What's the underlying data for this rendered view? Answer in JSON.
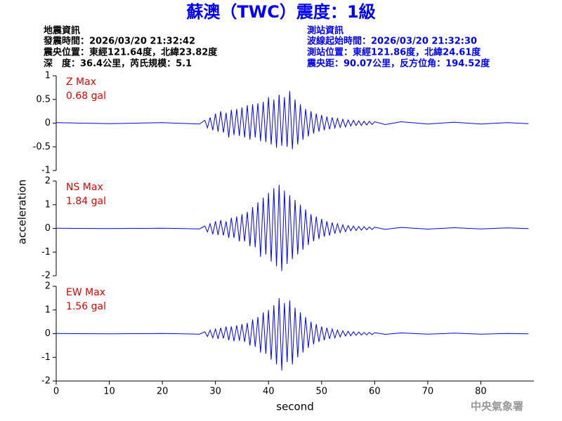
{
  "header": {
    "title": "蘇澳（TWC）震度：1級",
    "quake": [
      "地震資訊",
      "發震時間：2026/03/20 21:32:42",
      "震央位置：東經121.64度，北緯23.82度",
      "深　度：36.4公里，芮氏規模：5.1"
    ],
    "station": [
      "測站資訊",
      "波線起始時間：2026/03/20 21:32:30",
      "測站位置：東經121.86度，北緯24.61度",
      "震央距：90.07公里，反方位角：194.52度"
    ],
    "footer": "中央氣象署"
  },
  "chart_data": {
    "type": "line",
    "color": "#0000ff",
    "xlabel": "second",
    "ylabel": "acceleration",
    "xlim": [
      0,
      90
    ],
    "xticks": [
      0,
      10,
      20,
      30,
      40,
      50,
      60,
      70,
      80
    ],
    "x": [
      0,
      10,
      20,
      27,
      28,
      28.5,
      29,
      29.5,
      30,
      30.5,
      31,
      31.5,
      32,
      32.5,
      33,
      33.5,
      34,
      34.5,
      35,
      35.5,
      36,
      36.5,
      37,
      37.5,
      38,
      38.5,
      39,
      39.5,
      40,
      40.5,
      41,
      41.5,
      42,
      42.5,
      43,
      43.5,
      44,
      44.5,
      45,
      45.5,
      46,
      46.5,
      47,
      47.5,
      48,
      48.5,
      49,
      49.5,
      50,
      50.5,
      51,
      51.5,
      52,
      52.5,
      53,
      53.5,
      54,
      54.5,
      55,
      55.5,
      56,
      56.5,
      57,
      57.5,
      58,
      58.5,
      59,
      59.5,
      60,
      62,
      65,
      70,
      75,
      80,
      85,
      89
    ],
    "panels": [
      {
        "name": "Z Max",
        "max_label": "0.68 gal",
        "ylim": [
          -1,
          1
        ],
        "yticks": [
          -1,
          -0.5,
          0,
          0.5,
          1
        ],
        "values": [
          0.01,
          -0.01,
          0.01,
          -0.02,
          0.06,
          -0.1,
          0.12,
          -0.15,
          0.2,
          -0.18,
          0.25,
          -0.2,
          0.22,
          -0.3,
          0.28,
          -0.25,
          0.3,
          -0.27,
          0.33,
          -0.3,
          0.38,
          -0.35,
          0.4,
          -0.3,
          0.42,
          -0.38,
          0.45,
          -0.4,
          0.55,
          -0.45,
          0.5,
          -0.52,
          0.6,
          -0.48,
          0.55,
          -0.5,
          0.68,
          -0.55,
          0.5,
          -0.45,
          0.4,
          -0.35,
          0.3,
          -0.28,
          0.25,
          -0.22,
          0.2,
          -0.18,
          0.17,
          -0.15,
          0.14,
          -0.13,
          0.12,
          -0.1,
          0.1,
          -0.09,
          0.08,
          -0.08,
          0.07,
          -0.06,
          0.06,
          -0.05,
          0.05,
          -0.05,
          0.04,
          -0.04,
          0.04,
          -0.03,
          0.03,
          -0.03,
          0.03,
          -0.02,
          0.02,
          -0.02,
          0.01,
          -0.01
        ]
      },
      {
        "name": "NS Max",
        "max_label": "1.84 gal",
        "ylim": [
          -2,
          2
        ],
        "yticks": [
          -2,
          -1,
          0,
          1,
          2
        ],
        "values": [
          0.01,
          -0.01,
          0.01,
          -0.02,
          0.1,
          -0.15,
          0.2,
          -0.25,
          0.3,
          -0.28,
          0.35,
          -0.3,
          0.3,
          -0.4,
          0.45,
          -0.4,
          0.5,
          -0.55,
          0.6,
          -0.55,
          0.7,
          -0.75,
          0.9,
          -0.8,
          1.1,
          -1.2,
          1.3,
          -1.1,
          1.5,
          -1.4,
          1.7,
          -1.6,
          1.84,
          -1.8,
          1.6,
          -1.5,
          1.4,
          -1.3,
          1.2,
          -1.1,
          1.0,
          -0.9,
          0.8,
          -0.7,
          0.6,
          -0.55,
          0.5,
          -0.45,
          0.4,
          -0.35,
          0.3,
          -0.3,
          0.25,
          -0.22,
          0.2,
          -0.18,
          0.15,
          -0.14,
          0.12,
          -0.1,
          0.1,
          -0.09,
          0.08,
          -0.08,
          0.07,
          -0.06,
          0.06,
          -0.05,
          0.05,
          -0.04,
          0.04,
          -0.03,
          0.03,
          -0.02,
          0.02,
          -0.01
        ]
      },
      {
        "name": "EW Max",
        "max_label": "1.56 gal",
        "ylim": [
          -2,
          2
        ],
        "yticks": [
          -2,
          -1,
          0,
          1,
          2
        ],
        "values": [
          0.01,
          -0.01,
          0.01,
          -0.02,
          0.08,
          -0.12,
          0.15,
          -0.18,
          0.2,
          -0.22,
          0.25,
          -0.2,
          0.3,
          -0.28,
          0.3,
          -0.32,
          0.35,
          -0.3,
          0.4,
          -0.35,
          0.45,
          -0.5,
          0.6,
          -0.55,
          0.7,
          -0.8,
          0.9,
          -0.85,
          1.0,
          -1.1,
          1.2,
          -1.3,
          1.5,
          -1.56,
          1.3,
          -1.2,
          1.4,
          -1.3,
          1.1,
          -1.0,
          0.9,
          -0.8,
          0.7,
          -0.6,
          0.5,
          -0.45,
          0.4,
          -0.35,
          0.3,
          -0.28,
          0.25,
          -0.22,
          0.2,
          -0.18,
          0.15,
          -0.14,
          0.12,
          -0.1,
          0.1,
          -0.09,
          0.08,
          -0.07,
          0.07,
          -0.06,
          0.05,
          -0.05,
          0.05,
          -0.04,
          0.04,
          -0.03,
          0.03,
          -0.02,
          0.02,
          -0.02,
          0.01,
          -0.01
        ]
      }
    ]
  }
}
